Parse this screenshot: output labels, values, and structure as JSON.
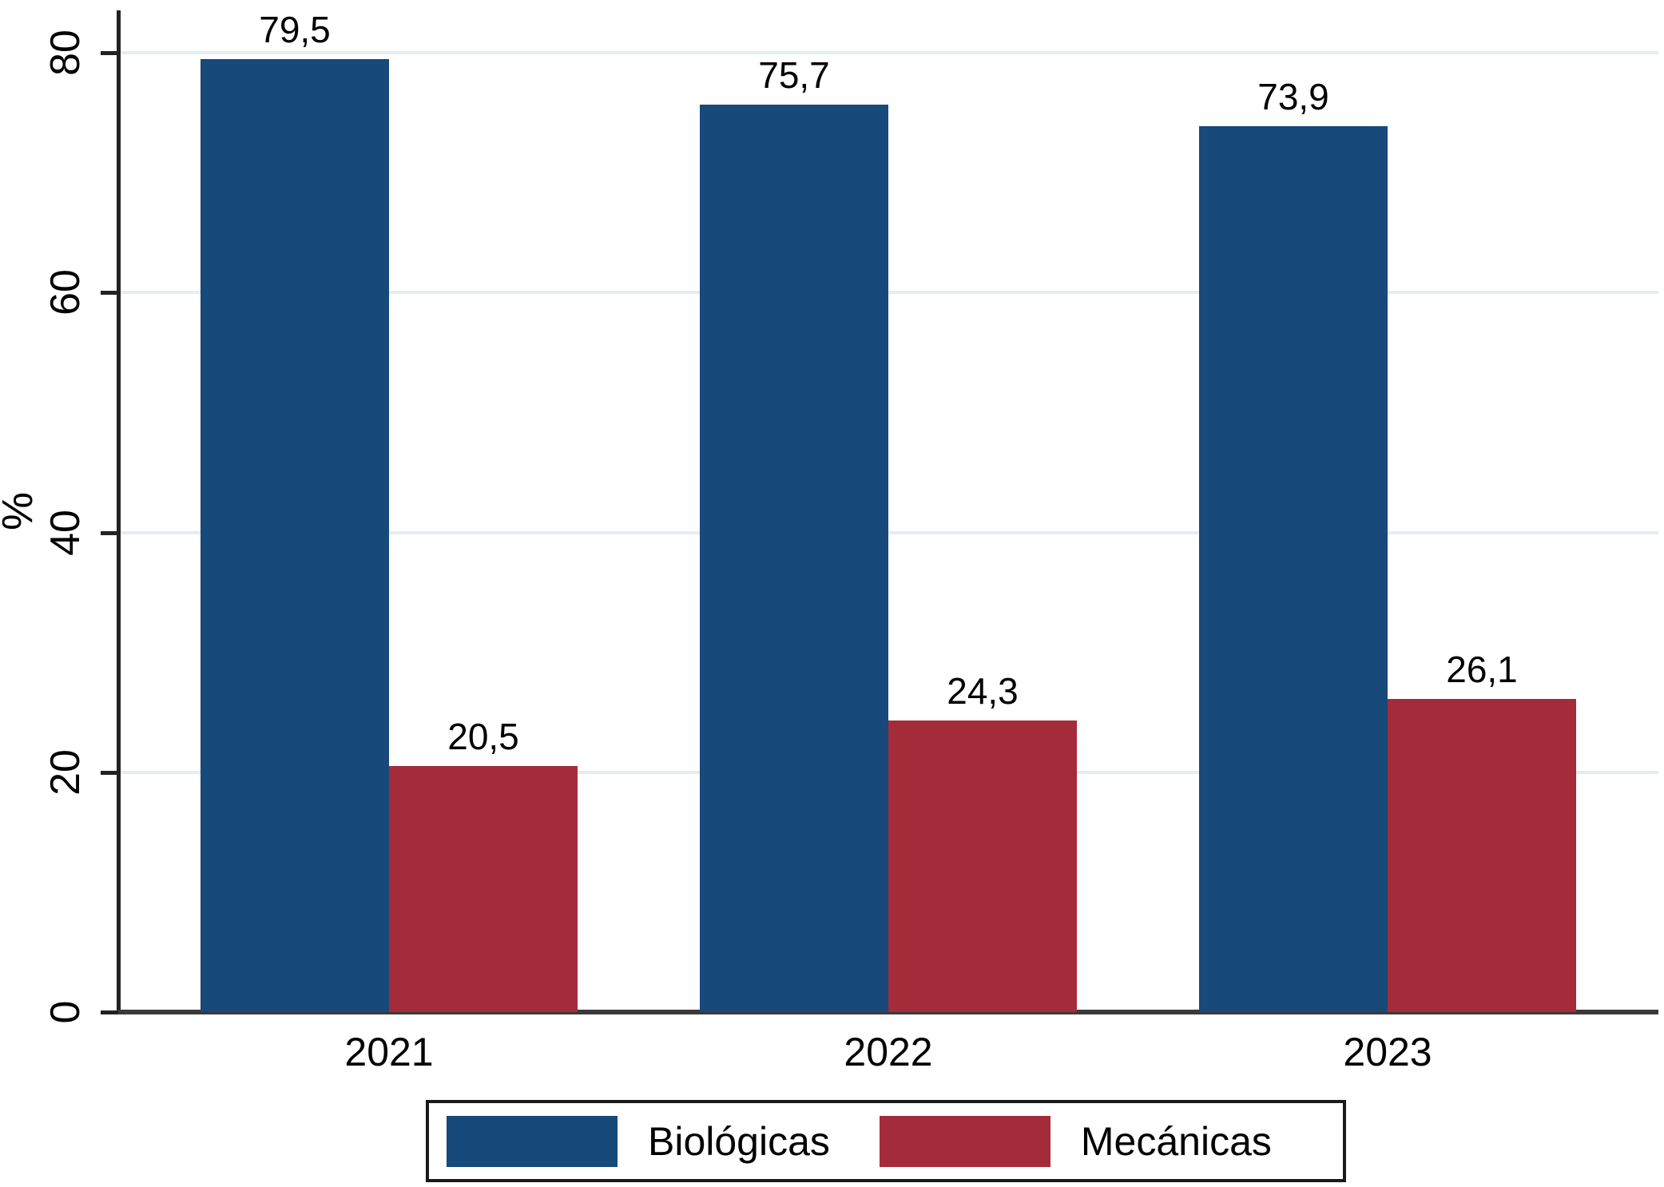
{
  "chart_data": {
    "type": "bar",
    "categories": [
      "2021",
      "2022",
      "2023"
    ],
    "series": [
      {
        "name": "Biológicas",
        "color": "#17497a",
        "values": [
          79.5,
          75.7,
          73.9
        ],
        "value_labels": [
          "79,5",
          "75,7",
          "73,9"
        ]
      },
      {
        "name": "Mecánicas",
        "color": "#a42b3a",
        "values": [
          20.5,
          24.3,
          26.1
        ],
        "value_labels": [
          "20,5",
          "24,3",
          "26,1"
        ]
      }
    ],
    "title": "",
    "xlabel": "",
    "ylabel": "%",
    "ylim": [
      0,
      85
    ],
    "yticks": [
      0,
      20,
      40,
      60,
      80
    ],
    "ytick_labels": [
      "0",
      "20",
      "40",
      "60",
      "80"
    ],
    "grid": true,
    "gridline_color": "#e4edf3",
    "legend_position": "bottom",
    "decimal_separator": ","
  },
  "legend": {
    "item1": "Biológicas",
    "item2": "Mecánicas"
  },
  "colors": {
    "series1": "#17497a",
    "series2": "#a42b3a",
    "axis": "#222222",
    "gridline": "#e4edf3",
    "text": "#000000"
  }
}
